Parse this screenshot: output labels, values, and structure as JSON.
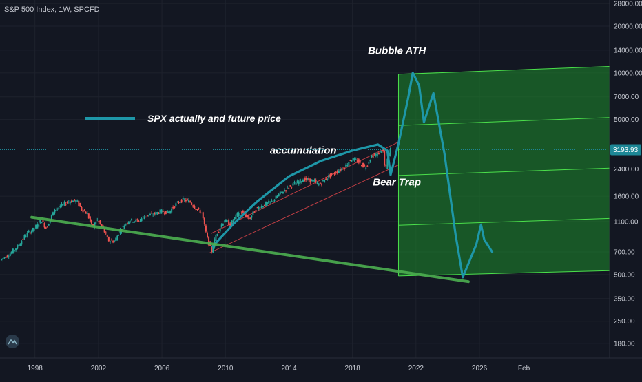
{
  "header": {
    "ticker": "S&P 500 Index, 1W, SPCFD"
  },
  "current_price": {
    "label": "3193.93",
    "value": 3193.93,
    "color": "#1d8796"
  },
  "colors": {
    "background": "#131722",
    "candle_up": "#26a69a",
    "candle_down": "#ef5350",
    "forecast_line": "#1e97a8",
    "trendline": "#4caf50",
    "channel_fill": "#1e8c2c",
    "channel_lines": "#4be04b",
    "red_channel": "#e0454a"
  },
  "chart_data": {
    "type": "line",
    "title": "",
    "xlabel": "",
    "ylabel": "",
    "y_scale": "log",
    "x_range": [
      1995.8,
      2034.2
    ],
    "y_range": [
      145,
      29500
    ],
    "y_ticks": [
      28000,
      20000,
      14000,
      10000,
      7000,
      5000,
      2400,
      1600,
      1100,
      700,
      500,
      350,
      250,
      180
    ],
    "y_tick_labels": [
      "28000.00",
      "20000.00",
      "14000.00",
      "10000.00",
      "7000.00",
      "5000.00",
      "2400.00",
      "1600.00",
      "1100.00",
      "700.00",
      "500.00",
      "350.00",
      "250.00",
      "180.00"
    ],
    "x_ticks": [
      1998,
      2002,
      2006,
      2010,
      2014,
      2018,
      2022,
      2026,
      2028.8
    ],
    "x_tick_labels": [
      "1998",
      "2002",
      "2006",
      "2010",
      "2014",
      "2018",
      "2022",
      "2026",
      "Feb"
    ],
    "grid": true,
    "legend": "top-left",
    "legend_label": "SPX actually and future price",
    "annotations": [
      {
        "text": "Bubble ATH",
        "x": 2020.8,
        "y": 13200
      },
      {
        "text": "accumulation",
        "x": 2014.9,
        "y": 3000
      },
      {
        "text": "Bear Trap",
        "x": 2020.8,
        "y": 1880
      }
    ],
    "price_history": [
      {
        "x": 1995.9,
        "y": 620
      },
      {
        "x": 1996.5,
        "y": 680
      },
      {
        "x": 1997.0,
        "y": 760
      },
      {
        "x": 1997.5,
        "y": 900
      },
      {
        "x": 1998.0,
        "y": 980
      },
      {
        "x": 1998.5,
        "y": 1120
      },
      {
        "x": 1998.8,
        "y": 990
      },
      {
        "x": 1999.3,
        "y": 1300
      },
      {
        "x": 1999.8,
        "y": 1400
      },
      {
        "x": 2000.2,
        "y": 1480
      },
      {
        "x": 2000.7,
        "y": 1500
      },
      {
        "x": 2001.0,
        "y": 1330
      },
      {
        "x": 2001.4,
        "y": 1230
      },
      {
        "x": 2001.7,
        "y": 1010
      },
      {
        "x": 2002.0,
        "y": 1130
      },
      {
        "x": 2002.4,
        "y": 980
      },
      {
        "x": 2002.7,
        "y": 830
      },
      {
        "x": 2003.1,
        "y": 820
      },
      {
        "x": 2003.5,
        "y": 980
      },
      {
        "x": 2004.0,
        "y": 1120
      },
      {
        "x": 2004.6,
        "y": 1110
      },
      {
        "x": 2005.0,
        "y": 1190
      },
      {
        "x": 2005.6,
        "y": 1230
      },
      {
        "x": 2006.0,
        "y": 1280
      },
      {
        "x": 2006.5,
        "y": 1260
      },
      {
        "x": 2007.0,
        "y": 1430
      },
      {
        "x": 2007.4,
        "y": 1520
      },
      {
        "x": 2007.8,
        "y": 1490
      },
      {
        "x": 2008.2,
        "y": 1340
      },
      {
        "x": 2008.6,
        "y": 1250
      },
      {
        "x": 2008.9,
        "y": 890
      },
      {
        "x": 2009.2,
        "y": 700
      },
      {
        "x": 2009.5,
        "y": 900
      },
      {
        "x": 2010.0,
        "y": 1120
      },
      {
        "x": 2010.4,
        "y": 1060
      },
      {
        "x": 2011.0,
        "y": 1290
      },
      {
        "x": 2011.6,
        "y": 1140
      },
      {
        "x": 2012.0,
        "y": 1320
      },
      {
        "x": 2012.6,
        "y": 1420
      },
      {
        "x": 2013.0,
        "y": 1480
      },
      {
        "x": 2013.6,
        "y": 1690
      },
      {
        "x": 2014.0,
        "y": 1820
      },
      {
        "x": 2014.6,
        "y": 1960
      },
      {
        "x": 2015.0,
        "y": 2060
      },
      {
        "x": 2015.6,
        "y": 2020
      },
      {
        "x": 2016.0,
        "y": 1900
      },
      {
        "x": 2016.6,
        "y": 2160
      },
      {
        "x": 2017.0,
        "y": 2270
      },
      {
        "x": 2017.6,
        "y": 2480
      },
      {
        "x": 2018.0,
        "y": 2780
      },
      {
        "x": 2018.4,
        "y": 2700
      },
      {
        "x": 2018.9,
        "y": 2450
      },
      {
        "x": 2019.3,
        "y": 2900
      },
      {
        "x": 2019.7,
        "y": 3000
      },
      {
        "x": 2020.0,
        "y": 3250
      },
      {
        "x": 2020.15,
        "y": 2300
      },
      {
        "x": 2020.3,
        "y": 2800
      },
      {
        "x": 2020.45,
        "y": 3190
      }
    ],
    "series": [
      {
        "name": "SPX actually and future price",
        "points": [
          {
            "x": 2009.2,
            "y": 760
          },
          {
            "x": 2010.5,
            "y": 1060
          },
          {
            "x": 2012.0,
            "y": 1480
          },
          {
            "x": 2014.0,
            "y": 2150
          },
          {
            "x": 2016.0,
            "y": 2700
          },
          {
            "x": 2018.0,
            "y": 3150
          },
          {
            "x": 2019.6,
            "y": 3450
          },
          {
            "x": 2020.2,
            "y": 3150
          },
          {
            "x": 2020.4,
            "y": 2200
          },
          {
            "x": 2020.9,
            "y": 3500
          },
          {
            "x": 2021.5,
            "y": 6800
          },
          {
            "x": 2021.8,
            "y": 10000
          },
          {
            "x": 2022.2,
            "y": 8300
          },
          {
            "x": 2022.5,
            "y": 4800
          },
          {
            "x": 2023.1,
            "y": 7400
          },
          {
            "x": 2023.8,
            "y": 3000
          },
          {
            "x": 2024.5,
            "y": 900
          },
          {
            "x": 2024.95,
            "y": 480
          },
          {
            "x": 2025.8,
            "y": 780
          },
          {
            "x": 2026.1,
            "y": 1050
          },
          {
            "x": 2026.3,
            "y": 840
          },
          {
            "x": 2026.8,
            "y": 700
          }
        ]
      },
      {
        "name": "Support trendline",
        "points": [
          {
            "x": 1997.8,
            "y": 1170
          },
          {
            "x": 2025.3,
            "y": 450
          }
        ]
      }
    ],
    "channels": [
      {
        "name": "Red trend channel",
        "lines": [
          [
            {
              "x": 2009.1,
              "y": 920
            },
            {
              "x": 2020.9,
              "y": 3580
            }
          ],
          [
            {
              "x": 2009.0,
              "y": 690
            },
            {
              "x": 2020.9,
              "y": 2550
            }
          ]
        ]
      },
      {
        "name": "Green projection channel",
        "fill_polygon": [
          {
            "x": 2020.9,
            "y": 9800
          },
          {
            "x": 2034.2,
            "y": 11000
          },
          {
            "x": 2034.2,
            "y": 530
          },
          {
            "x": 2020.9,
            "y": 490
          }
        ],
        "levels": [
          [
            {
              "x": 2020.9,
              "y": 9800
            },
            {
              "x": 2034.2,
              "y": 11000
            }
          ],
          [
            {
              "x": 2020.9,
              "y": 4580
            },
            {
              "x": 2034.2,
              "y": 5150
            }
          ],
          [
            {
              "x": 2020.9,
              "y": 2180
            },
            {
              "x": 2034.2,
              "y": 2430
            }
          ],
          [
            {
              "x": 2020.9,
              "y": 1040
            },
            {
              "x": 2034.2,
              "y": 1150
            }
          ],
          [
            {
              "x": 2020.9,
              "y": 490
            },
            {
              "x": 2034.2,
              "y": 530
            }
          ]
        ]
      }
    ]
  }
}
